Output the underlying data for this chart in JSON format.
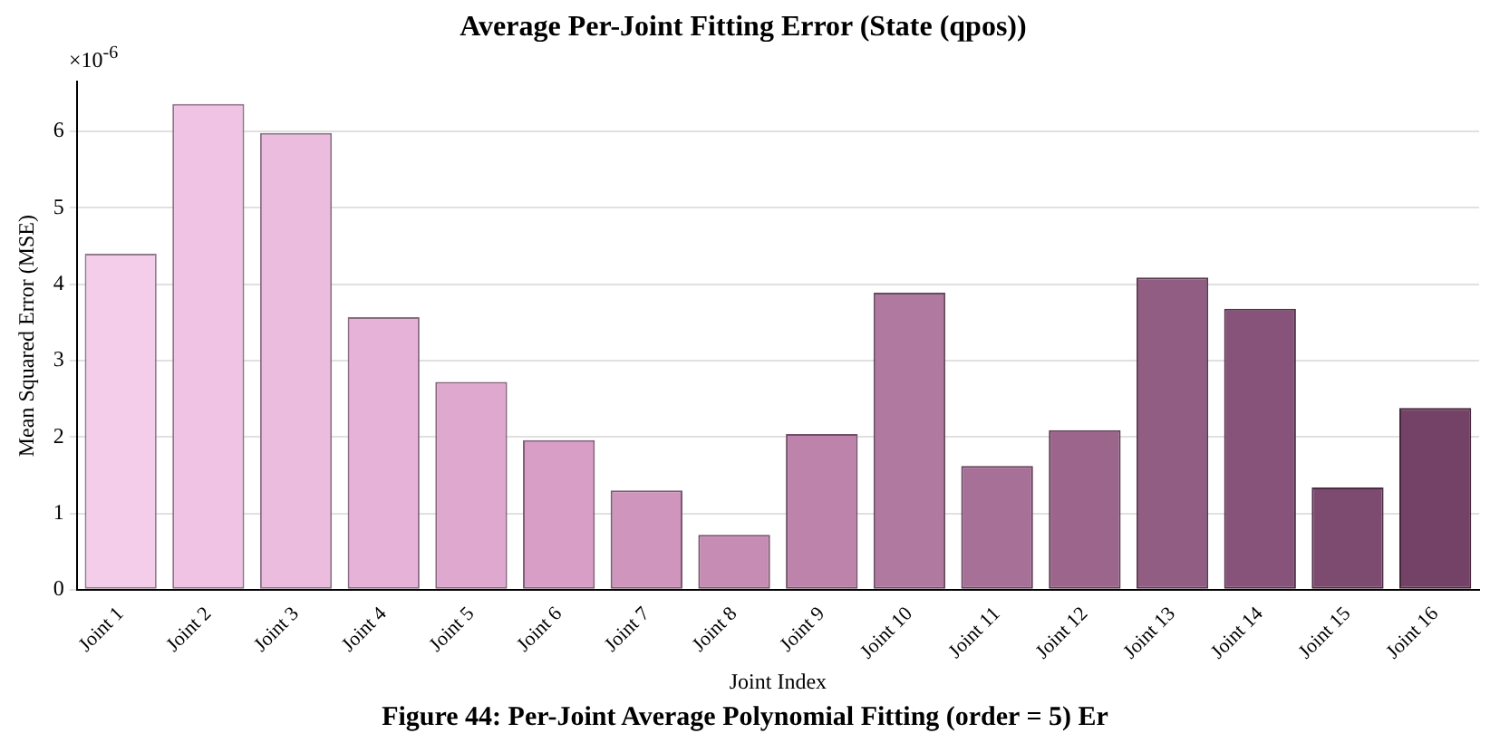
{
  "chart_data": {
    "type": "bar",
    "title": "Average Per-Joint Fitting Error (State (qpos))",
    "xlabel": "Joint Index",
    "ylabel": "Mean Squared Error (MSE)",
    "categories": [
      "Joint 1",
      "Joint 2",
      "Joint 3",
      "Joint 4",
      "Joint 5",
      "Joint 6",
      "Joint 7",
      "Joint 8",
      "Joint 9",
      "Joint 10",
      "Joint 11",
      "Joint 12",
      "Joint 13",
      "Joint 14",
      "Joint 15",
      "Joint 16"
    ],
    "values": [
      4.4,
      6.36,
      5.98,
      3.57,
      2.72,
      1.96,
      1.3,
      0.72,
      2.04,
      3.89,
      1.62,
      2.09,
      4.09,
      3.68,
      1.34,
      2.38
    ],
    "colors": [
      "#f4cdea",
      "#f0c2e4",
      "#ecbcdf",
      "#e6b2d8",
      "#dfa8cf",
      "#d89ec6",
      "#cf95bc",
      "#c68cb3",
      "#bd83aa",
      "#b079a0",
      "#a77097",
      "#9c668c",
      "#925d83",
      "#88537a",
      "#7e4b70",
      "#744266"
    ],
    "ylim": [
      0,
      6.65
    ],
    "yticks": [
      0,
      1,
      2,
      3,
      4,
      5,
      6
    ],
    "grid": "y",
    "annotations": [
      "×10$^{-6}$",
      "Figure 44: Per-Joint Average Polynomial Fitting (order = 5) Er"
    ]
  }
}
